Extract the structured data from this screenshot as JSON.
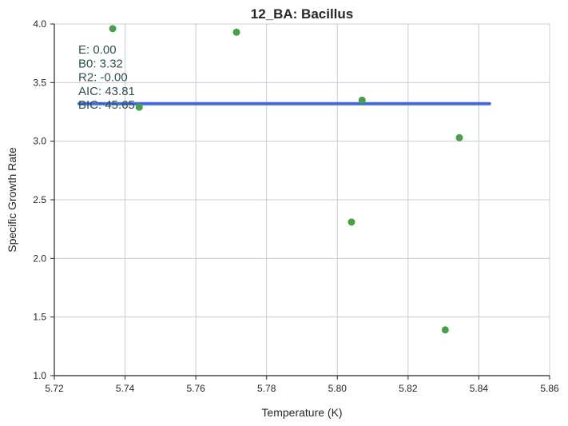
{
  "chart_data": {
    "type": "scatter",
    "title": "12_BA: Bacillus",
    "xlabel": "Temperature (K)",
    "ylabel": "Specific Growth Rate",
    "xlim": [
      5.72,
      5.86
    ],
    "ylim": [
      1.0,
      4.0
    ],
    "xticks": [
      "5.72",
      "5.74",
      "5.76",
      "5.78",
      "5.80",
      "5.82",
      "5.84",
      "5.86"
    ],
    "yticks": [
      "1.0",
      "1.5",
      "2.0",
      "2.5",
      "3.0",
      "3.5",
      "4.0"
    ],
    "grid": true,
    "points": {
      "color": "#4aa04a",
      "x": [
        5.7365,
        5.744,
        5.7715,
        5.804,
        5.807,
        5.8305,
        5.8345
      ],
      "y": [
        3.96,
        3.29,
        3.93,
        2.31,
        3.35,
        1.39,
        3.03
      ]
    },
    "fit_line": {
      "color": "#4169d8",
      "x": [
        5.727,
        5.843
      ],
      "y": [
        3.32,
        3.32
      ]
    },
    "annotations": [
      "E:  0.00",
      "B0:  3.32",
      "R2:  -0.00",
      "AIC: 43.81",
      "BIC: 45.65"
    ]
  }
}
